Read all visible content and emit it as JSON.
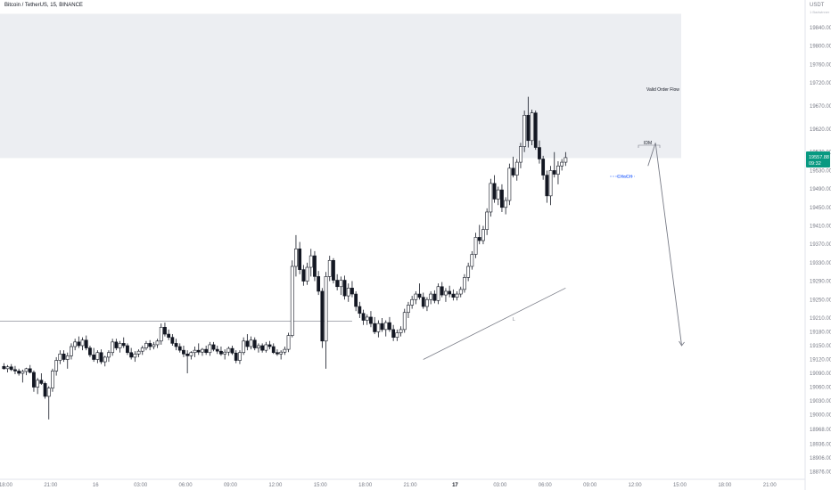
{
  "header": {
    "title": "Bitcoin / TetherUS, 15, BINANCE",
    "unit": "USDT",
    "unit_sub": "1 Badwinner"
  },
  "price_tag": {
    "price": "19557.88",
    "countdown": "09:32",
    "color": "#089981"
  },
  "annotations": {
    "valid_order_flow": "Valid Order Flow",
    "idm": "IDM",
    "choch": "CHoCH",
    "trend_label": "L"
  },
  "colors": {
    "bull": "#ffffff",
    "bear": "#131722",
    "zone": "#eceef2",
    "line": "#787b86",
    "choch": "#2962ff"
  },
  "chart_data": {
    "type": "candlestick",
    "title": "Bitcoin / TetherUS, 15, BINANCE",
    "ylabel": "USDT",
    "ylim": [
      18860,
      19900
    ],
    "y_ticks": [
      19840,
      19800,
      19760,
      19720,
      19670,
      19620,
      19570,
      19530,
      19490,
      19450,
      19410,
      19370,
      19330,
      19290,
      19250,
      19210,
      19180,
      19150,
      19120,
      19090,
      19060,
      19030,
      19000,
      18968,
      18936,
      18906,
      18876
    ],
    "x_ticks": [
      {
        "label": "18:00",
        "x": 0.5,
        "bold": false
      },
      {
        "label": "21:00",
        "x": 12.5,
        "bold": false
      },
      {
        "label": "16",
        "x": 24.5,
        "bold": false
      },
      {
        "label": "03:00",
        "x": 36.5,
        "bold": false
      },
      {
        "label": "06:00",
        "x": 48.5,
        "bold": false
      },
      {
        "label": "09:00",
        "x": 60.5,
        "bold": false
      },
      {
        "label": "12:00",
        "x": 72.5,
        "bold": false
      },
      {
        "label": "15:00",
        "x": 84.5,
        "bold": false
      },
      {
        "label": "18:00",
        "x": 96.5,
        "bold": false
      },
      {
        "label": "21:00",
        "x": 108.5,
        "bold": false
      },
      {
        "label": "17",
        "x": 120.5,
        "bold": true
      },
      {
        "label": "03:00",
        "x": 132.5,
        "bold": false
      },
      {
        "label": "06:00",
        "x": 144.5,
        "bold": false
      },
      {
        "label": "09:00",
        "x": 156.5,
        "bold": false
      },
      {
        "label": "12:00",
        "x": 168.5,
        "bold": false
      },
      {
        "label": "15:00",
        "x": 180.5,
        "bold": false
      },
      {
        "label": "18:00",
        "x": 192.5,
        "bold": false
      },
      {
        "label": "21:00",
        "x": 204.5,
        "bold": false
      }
    ],
    "supply_zone": [
      19557,
      19870
    ],
    "reference_level": 19203,
    "projection": [
      [
        172,
        19540
      ],
      [
        174,
        19590
      ],
      [
        181,
        19150
      ]
    ],
    "trendline": [
      [
        112,
        19120
      ],
      [
        150,
        19275
      ]
    ],
    "ohlc": [
      [
        19105,
        19112,
        19098,
        19100
      ],
      [
        19100,
        19108,
        19092,
        19104
      ],
      [
        19104,
        19110,
        19095,
        19098
      ],
      [
        19098,
        19106,
        19088,
        19095
      ],
      [
        19095,
        19100,
        19085,
        19090
      ],
      [
        19090,
        19098,
        19070,
        19094
      ],
      [
        19094,
        19102,
        19086,
        19100
      ],
      [
        19100,
        19108,
        19090,
        19092
      ],
      [
        19092,
        19096,
        19050,
        19060
      ],
      [
        19060,
        19080,
        19045,
        19075
      ],
      [
        19075,
        19090,
        19065,
        19068
      ],
      [
        19068,
        19072,
        19035,
        19040
      ],
      [
        19040,
        19062,
        18990,
        19058
      ],
      [
        19058,
        19100,
        19050,
        19095
      ],
      [
        19095,
        19125,
        19085,
        19118
      ],
      [
        19118,
        19140,
        19110,
        19132
      ],
      [
        19132,
        19140,
        19115,
        19120
      ],
      [
        19120,
        19135,
        19100,
        19128
      ],
      [
        19128,
        19155,
        19120,
        19148
      ],
      [
        19148,
        19165,
        19140,
        19158
      ],
      [
        19158,
        19170,
        19145,
        19150
      ],
      [
        19150,
        19168,
        19140,
        19162
      ],
      [
        19162,
        19172,
        19140,
        19145
      ],
      [
        19145,
        19150,
        19125,
        19130
      ],
      [
        19130,
        19145,
        19115,
        19120
      ],
      [
        19120,
        19140,
        19112,
        19135
      ],
      [
        19135,
        19142,
        19110,
        19115
      ],
      [
        19115,
        19128,
        19105,
        19125
      ],
      [
        19125,
        19140,
        19115,
        19135
      ],
      [
        19135,
        19165,
        19128,
        19158
      ],
      [
        19158,
        19165,
        19140,
        19145
      ],
      [
        19145,
        19160,
        19135,
        19155
      ],
      [
        19155,
        19168,
        19145,
        19150
      ],
      [
        19150,
        19155,
        19130,
        19135
      ],
      [
        19135,
        19145,
        19120,
        19125
      ],
      [
        19125,
        19138,
        19115,
        19132
      ],
      [
        19132,
        19142,
        19125,
        19138
      ],
      [
        19138,
        19150,
        19130,
        19145
      ],
      [
        19145,
        19160,
        19140,
        19155
      ],
      [
        19155,
        19162,
        19140,
        19148
      ],
      [
        19148,
        19158,
        19142,
        19152
      ],
      [
        19152,
        19165,
        19145,
        19160
      ],
      [
        19160,
        19198,
        19152,
        19190
      ],
      [
        19190,
        19200,
        19170,
        19175
      ],
      [
        19175,
        19185,
        19162,
        19168
      ],
      [
        19168,
        19175,
        19150,
        19155
      ],
      [
        19155,
        19165,
        19140,
        19148
      ],
      [
        19148,
        19155,
        19135,
        19140
      ],
      [
        19140,
        19150,
        19125,
        19132
      ],
      [
        19132,
        19140,
        19090,
        19128
      ],
      [
        19128,
        19138,
        19120,
        19135
      ],
      [
        19135,
        19148,
        19125,
        19140
      ],
      [
        19140,
        19155,
        19130,
        19136
      ],
      [
        19136,
        19145,
        19128,
        19142
      ],
      [
        19142,
        19150,
        19130,
        19135
      ],
      [
        19135,
        19158,
        19128,
        19152
      ],
      [
        19152,
        19158,
        19138,
        19142
      ],
      [
        19142,
        19150,
        19132,
        19138
      ],
      [
        19138,
        19148,
        19128,
        19132
      ],
      [
        19132,
        19142,
        19120,
        19136
      ],
      [
        19136,
        19148,
        19128,
        19144
      ],
      [
        19144,
        19150,
        19130,
        19134
      ],
      [
        19134,
        19140,
        19112,
        19118
      ],
      [
        19118,
        19140,
        19110,
        19135
      ],
      [
        19135,
        19168,
        19130,
        19160
      ],
      [
        19160,
        19175,
        19140,
        19148
      ],
      [
        19148,
        19170,
        19142,
        19162
      ],
      [
        19162,
        19168,
        19140,
        19145
      ],
      [
        19145,
        19155,
        19135,
        19150
      ],
      [
        19150,
        19155,
        19135,
        19140
      ],
      [
        19140,
        19158,
        19135,
        19152
      ],
      [
        19152,
        19160,
        19142,
        19148
      ],
      [
        19148,
        19155,
        19132,
        19135
      ],
      [
        19135,
        19142,
        19128,
        19132
      ],
      [
        19132,
        19140,
        19120,
        19136
      ],
      [
        19136,
        19148,
        19130,
        19142
      ],
      [
        19142,
        19178,
        19136,
        19172
      ],
      [
        19172,
        19335,
        19168,
        19322
      ],
      [
        19322,
        19390,
        19300,
        19360
      ],
      [
        19360,
        19375,
        19305,
        19315
      ],
      [
        19315,
        19325,
        19280,
        19290
      ],
      [
        19290,
        19330,
        19282,
        19320
      ],
      [
        19320,
        19360,
        19300,
        19345
      ],
      [
        19345,
        19355,
        19290,
        19300
      ],
      [
        19300,
        19312,
        19260,
        19268
      ],
      [
        19268,
        19275,
        19145,
        19160
      ],
      [
        19160,
        19310,
        19100,
        19300
      ],
      [
        19300,
        19345,
        19290,
        19335
      ],
      [
        19335,
        19340,
        19285,
        19292
      ],
      [
        19292,
        19305,
        19270,
        19278
      ],
      [
        19278,
        19300,
        19260,
        19292
      ],
      [
        19292,
        19302,
        19250,
        19258
      ],
      [
        19258,
        19285,
        19245,
        19275
      ],
      [
        19275,
        19290,
        19255,
        19262
      ],
      [
        19262,
        19268,
        19225,
        19235
      ],
      [
        19235,
        19245,
        19210,
        19220
      ],
      [
        19220,
        19228,
        19195,
        19205
      ],
      [
        19205,
        19218,
        19195,
        19212
      ],
      [
        19212,
        19225,
        19190,
        19198
      ],
      [
        19198,
        19212,
        19175,
        19180
      ],
      [
        19180,
        19205,
        19168,
        19198
      ],
      [
        19198,
        19210,
        19180,
        19185
      ],
      [
        19185,
        19205,
        19170,
        19200
      ],
      [
        19200,
        19212,
        19180,
        19185
      ],
      [
        19185,
        19195,
        19160,
        19168
      ],
      [
        19168,
        19185,
        19160,
        19178
      ],
      [
        19178,
        19192,
        19170,
        19185
      ],
      [
        19185,
        19230,
        19178,
        19222
      ],
      [
        19222,
        19245,
        19210,
        19238
      ],
      [
        19238,
        19258,
        19230,
        19250
      ],
      [
        19250,
        19268,
        19240,
        19262
      ],
      [
        19262,
        19285,
        19250,
        19255
      ],
      [
        19255,
        19265,
        19230,
        19235
      ],
      [
        19235,
        19255,
        19225,
        19250
      ],
      [
        19250,
        19268,
        19240,
        19262
      ],
      [
        19262,
        19270,
        19242,
        19248
      ],
      [
        19248,
        19285,
        19240,
        19278
      ],
      [
        19278,
        19288,
        19255,
        19260
      ],
      [
        19260,
        19275,
        19245,
        19268
      ],
      [
        19268,
        19280,
        19255,
        19262
      ],
      [
        19262,
        19272,
        19248,
        19255
      ],
      [
        19255,
        19268,
        19248,
        19262
      ],
      [
        19262,
        19278,
        19255,
        19272
      ],
      [
        19272,
        19305,
        19265,
        19298
      ],
      [
        19298,
        19330,
        19290,
        19322
      ],
      [
        19322,
        19355,
        19315,
        19348
      ],
      [
        19348,
        19395,
        19340,
        19385
      ],
      [
        19385,
        19412,
        19370,
        19378
      ],
      [
        19378,
        19410,
        19370,
        19402
      ],
      [
        19402,
        19448,
        19390,
        19440
      ],
      [
        19440,
        19512,
        19430,
        19502
      ],
      [
        19502,
        19520,
        19460,
        19468
      ],
      [
        19468,
        19495,
        19455,
        19488
      ],
      [
        19488,
        19500,
        19440,
        19450
      ],
      [
        19450,
        19472,
        19435,
        19465
      ],
      [
        19465,
        19545,
        19455,
        19535
      ],
      [
        19535,
        19560,
        19515,
        19520
      ],
      [
        19520,
        19555,
        19508,
        19548
      ],
      [
        19548,
        19590,
        19535,
        19582
      ],
      [
        19582,
        19660,
        19570,
        19650
      ],
      [
        19650,
        19690,
        19580,
        19595
      ],
      [
        19595,
        19662,
        19585,
        19655
      ],
      [
        19655,
        19660,
        19575,
        19580
      ],
      [
        19580,
        19595,
        19545,
        19555
      ],
      [
        19555,
        19562,
        19510,
        19520
      ],
      [
        19520,
        19530,
        19460,
        19475
      ],
      [
        19475,
        19540,
        19455,
        19530
      ],
      [
        19530,
        19570,
        19515,
        19522
      ],
      [
        19522,
        19550,
        19500,
        19540
      ],
      [
        19540,
        19555,
        19530,
        19548
      ],
      [
        19548,
        19570,
        19540,
        19558
      ]
    ]
  }
}
